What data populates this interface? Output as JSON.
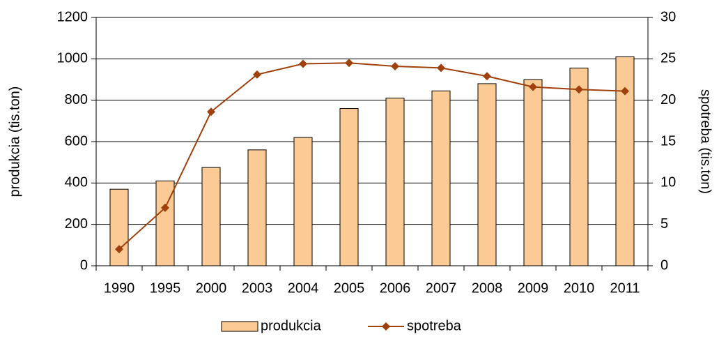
{
  "chart_data": {
    "type": "bar",
    "categories": [
      "1990",
      "1995",
      "2000",
      "2003",
      "2004",
      "2005",
      "2006",
      "2007",
      "2008",
      "2009",
      "2010",
      "2011"
    ],
    "series": [
      {
        "name": "produkcia",
        "type": "bar",
        "color": "#fcca95",
        "values": [
          370,
          410,
          475,
          560,
          620,
          760,
          810,
          845,
          880,
          900,
          955,
          1010
        ]
      },
      {
        "name": "spotreba",
        "type": "line",
        "axis": "y2",
        "color": "#a0410d",
        "values": [
          2.0,
          7.0,
          18.6,
          23.1,
          24.4,
          24.5,
          24.1,
          23.9,
          22.9,
          21.6,
          21.3,
          21.1
        ]
      }
    ],
    "ylabel": "produkcia (tis.ton)",
    "y2label": "spotreba (tis.ton)",
    "ylim": [
      0,
      1200
    ],
    "yticks": [
      0,
      200,
      400,
      600,
      800,
      1000,
      1200
    ],
    "y2lim": [
      0,
      30
    ],
    "y2ticks": [
      0,
      5,
      10,
      15,
      20,
      25,
      30
    ],
    "grid": true,
    "legend": "bottom"
  }
}
